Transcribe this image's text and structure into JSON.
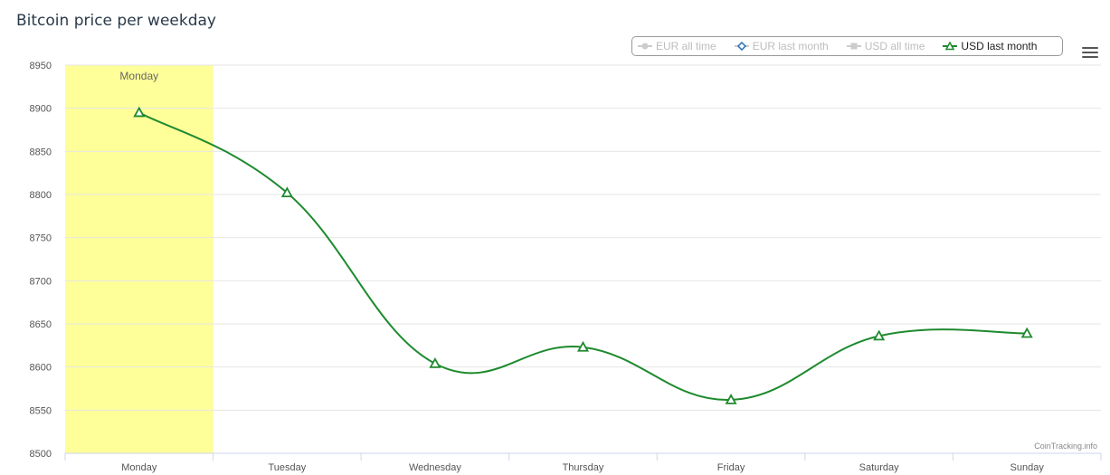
{
  "header": {
    "title": "Bitcoin price per weekday"
  },
  "legend": {
    "items": [
      {
        "label": "EUR all time",
        "icon": "circle-line-icon",
        "active": false
      },
      {
        "label": "EUR last month",
        "icon": "diamond-line-icon",
        "active": false
      },
      {
        "label": "USD all time",
        "icon": "square-line-icon",
        "active": false
      },
      {
        "label": "USD last month",
        "icon": "triangle-line-icon",
        "active": true
      }
    ]
  },
  "menu": {
    "icon": "hamburger-menu-icon"
  },
  "credit": "CoinTracking.info",
  "colors": {
    "series": "#1e8a2e",
    "highlight_band": "#ffff99",
    "grid": "#e6e6e6",
    "legend_inactive": "#bdbdbd"
  },
  "chart_data": {
    "type": "line",
    "title": "Bitcoin price per weekday",
    "xlabel": "",
    "ylabel": "",
    "categories": [
      "Monday",
      "Tuesday",
      "Wednesday",
      "Thursday",
      "Friday",
      "Saturday",
      "Sunday"
    ],
    "ylim": [
      8500,
      8950
    ],
    "yticks": [
      8500,
      8550,
      8600,
      8650,
      8700,
      8750,
      8800,
      8850,
      8900,
      8950
    ],
    "series": [
      {
        "name": "USD last month",
        "values": [
          8895,
          8802,
          8604,
          8623,
          8562,
          8636,
          8639
        ]
      }
    ],
    "highlight": {
      "category": "Monday",
      "label": "Monday"
    },
    "grid": true,
    "legend_position": "top-right",
    "smooth": true
  }
}
